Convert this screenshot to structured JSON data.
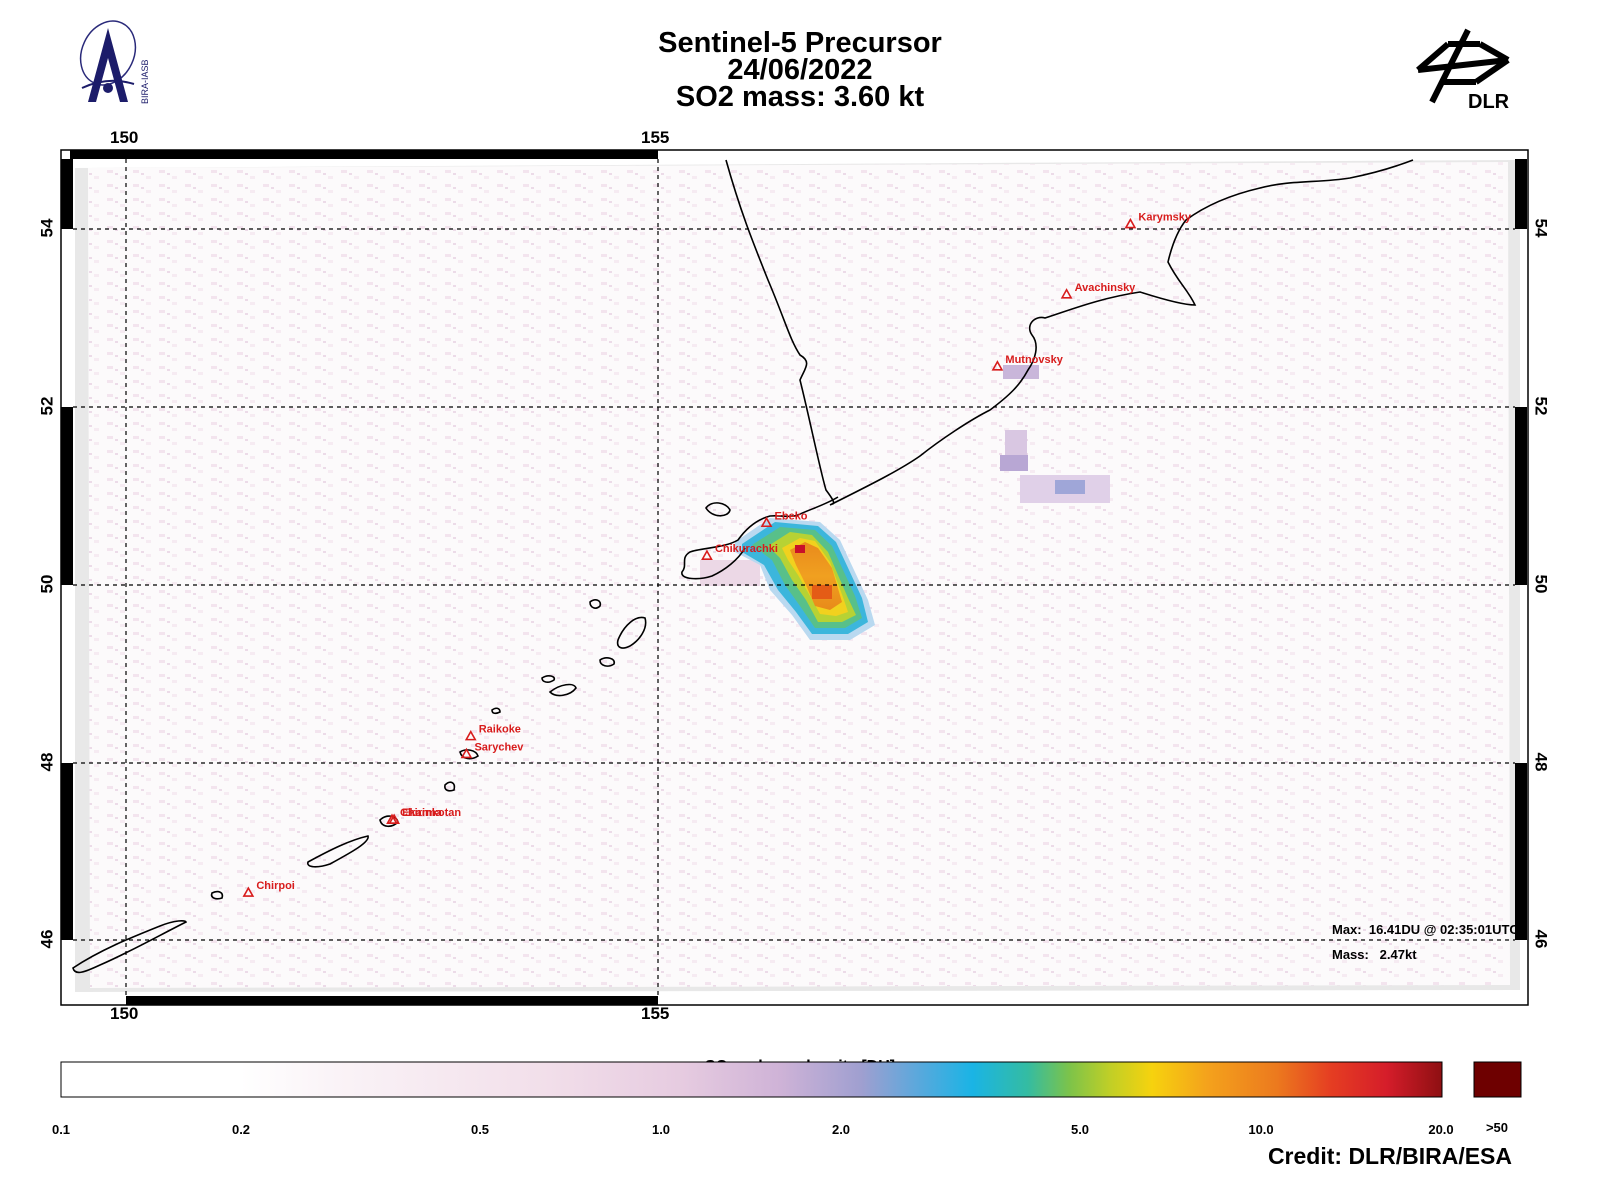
{
  "header": {
    "line1": "Sentinel-5 Precursor",
    "line2": "24/06/2022",
    "line3": "SO2 mass: 3.60   kt"
  },
  "logos": {
    "left_text": "BIRA-IASB",
    "right_text": "DLR"
  },
  "map": {
    "lon_labels_top": [
      "150",
      "155"
    ],
    "lon_labels_bottom": [
      "150",
      "155"
    ],
    "lat_labels": [
      "54",
      "52",
      "50",
      "48",
      "46"
    ],
    "volcanoes": [
      {
        "name": "Karymsky",
        "lon": 159.44,
        "lat": 54.05
      },
      {
        "name": "Avachinsky",
        "lon": 158.84,
        "lat": 53.26
      },
      {
        "name": "Mutnovsky",
        "lon": 158.19,
        "lat": 52.45
      },
      {
        "name": "Ebeko",
        "lon": 156.02,
        "lat": 50.69
      },
      {
        "name": "Chikurachki",
        "lon": 155.46,
        "lat": 50.32
      },
      {
        "name": "Raikoke",
        "lon": 153.24,
        "lat": 48.29
      },
      {
        "name": "Sarychev",
        "lon": 153.2,
        "lat": 48.09
      },
      {
        "name": "Chirinkotan",
        "lon": 152.5,
        "lat": 47.35
      },
      {
        "name": "Ekarma",
        "lon": 152.52,
        "lat": 47.35
      },
      {
        "name": "Chirpoi",
        "lon": 151.15,
        "lat": 46.53
      }
    ],
    "info_max": "Max:  16.41DU @ 02:35:01UTC",
    "info_mass": "Mass:   2.47kt",
    "colors": {
      "volcano": "#d81c1c"
    }
  },
  "colorbar": {
    "title": "SO₂ column density [DU]",
    "ticks": [
      "0.1",
      "0.2",
      "0.5",
      "1.0",
      "2.0",
      "5.0",
      "10.0",
      "20.0"
    ],
    "over_label": ">50"
  },
  "credit": "Credit: DLR/BIRA/ESA"
}
